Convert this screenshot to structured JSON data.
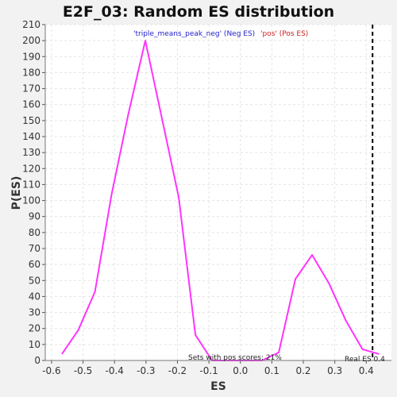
{
  "chart_data": {
    "type": "line",
    "title": "E2F_03: Random ES distribution",
    "xlabel": "ES",
    "ylabel": "P(ES)",
    "xlim": [
      -0.62,
      0.48
    ],
    "ylim": [
      0,
      210
    ],
    "x_ticks": [
      "-0.6",
      "-0.5",
      "-0.4",
      "-0.3",
      "-0.2",
      "-0.1",
      "0.0",
      "0.1",
      "0.2",
      "0.3",
      "0.4"
    ],
    "y_ticks": [
      "0",
      "10",
      "20",
      "30",
      "40",
      "50",
      "60",
      "70",
      "80",
      "90",
      "100",
      "110",
      "120",
      "130",
      "140",
      "150",
      "160",
      "170",
      "180",
      "190",
      "200",
      "210"
    ],
    "grid": true,
    "legend": {
      "neg_label": "'triple_means_peak_neg' (Neg ES)",
      "pos_label": "'pos' (Pos ES)",
      "neg_color": "#2222cc",
      "pos_color": "#cc2222"
    },
    "series": [
      {
        "color": "#ff33ff",
        "x": [
          -0.567,
          -0.515,
          -0.462,
          -0.409,
          -0.356,
          -0.302,
          -0.249,
          -0.196,
          -0.143,
          -0.09,
          -0.037,
          0.016,
          0.069,
          0.122,
          0.175,
          0.228,
          0.282,
          0.335,
          0.388,
          0.441
        ],
        "y": [
          4,
          19,
          43,
          104,
          154,
          200,
          151,
          102,
          16,
          0,
          0,
          0,
          0,
          5,
          51,
          66,
          48,
          25,
          7,
          4
        ]
      }
    ],
    "real_es": {
      "value": 0.42,
      "label": "Real ES 0.4"
    },
    "annotation": "Sets with pos scores: 21%"
  }
}
